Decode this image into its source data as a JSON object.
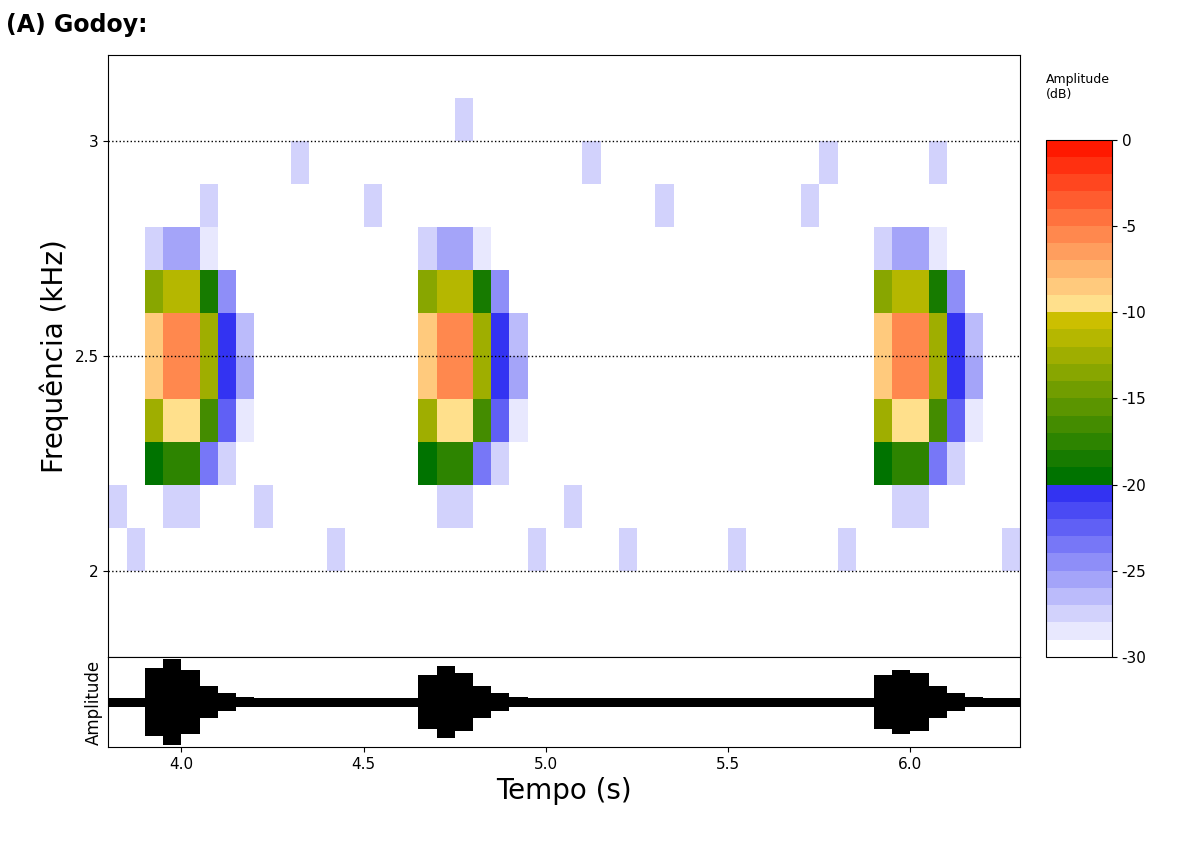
{
  "chart_data": [
    {
      "type": "heatmap",
      "title": "(A) Godoy:",
      "ylabel": "Frequência (kHz)",
      "xlim": [
        3.8,
        6.3
      ],
      "ylim": [
        1.8,
        3.2
      ],
      "yticks": [
        2,
        2.5,
        3
      ],
      "grid": true,
      "tick_labels": "y",
      "time_edges": [
        3.8,
        3.85,
        3.9,
        3.95,
        4.0,
        4.05,
        4.1,
        4.15,
        4.2,
        4.25,
        4.3,
        4.35,
        4.4,
        4.45,
        4.5,
        4.55,
        4.6,
        4.65,
        4.7,
        4.75,
        4.8,
        4.85,
        4.9,
        4.95,
        5.0,
        5.05,
        5.1,
        5.15,
        5.2,
        5.25,
        5.3,
        5.35,
        5.4,
        5.45,
        5.5,
        5.55,
        5.6,
        5.65,
        5.7,
        5.75,
        5.8,
        5.85,
        5.9,
        5.95,
        6.0,
        6.05,
        6.1,
        6.15,
        6.2,
        6.25,
        6.3
      ],
      "freq_edges": [
        1.8,
        1.9,
        2.0,
        2.1,
        2.2,
        2.3,
        2.4,
        2.5,
        2.6,
        2.7,
        2.8,
        2.9,
        3.0,
        3.1,
        3.2
      ],
      "cells": [
        [
          -30,
          -30,
          -30,
          -30,
          -30,
          -30,
          -30,
          -30,
          -30,
          -30,
          -30,
          -30,
          -30,
          -30,
          -30,
          -30,
          -30,
          -30,
          -30,
          -30,
          -30,
          -30,
          -30,
          -30,
          -30,
          -30,
          -30,
          -30,
          -30,
          -30,
          -30,
          -30,
          -30,
          -30,
          -30,
          -30,
          -30,
          -30,
          -30,
          -30,
          -30,
          -30,
          -30,
          -30,
          -30,
          -30,
          -30,
          -30,
          -30,
          -30
        ],
        [
          -30,
          -30,
          -30,
          -30,
          -30,
          -30,
          -30,
          -30,
          -30,
          -30,
          -30,
          -30,
          -30,
          -30,
          -30,
          -30,
          -30,
          -30,
          -30,
          -30,
          -30,
          -30,
          -30,
          -30,
          -30,
          -30,
          -30,
          -30,
          -30,
          -30,
          -30,
          -30,
          -30,
          -30,
          -30,
          -30,
          -30,
          -30,
          -30,
          -30,
          -30,
          -30,
          -30,
          -30,
          -30,
          -30,
          -30,
          -30,
          -30,
          -30
        ],
        [
          -30,
          -28,
          -30,
          -30,
          -30,
          -30,
          -30,
          -30,
          -30,
          -30,
          -30,
          -30,
          -28,
          -30,
          -30,
          -30,
          -30,
          -30,
          -30,
          -30,
          -30,
          -30,
          -30,
          -28,
          -30,
          -30,
          -30,
          -30,
          -28,
          -30,
          -30,
          -30,
          -30,
          -30,
          -28,
          -30,
          -30,
          -30,
          -30,
          -30,
          -28,
          -30,
          -30,
          -30,
          -30,
          -30,
          -30,
          -30,
          -30,
          -28
        ],
        [
          -28,
          -30,
          -30,
          -28,
          -28,
          -30,
          -30,
          -30,
          -28,
          -30,
          -30,
          -30,
          -30,
          -30,
          -30,
          -30,
          -30,
          -30,
          -28,
          -28,
          -30,
          -30,
          -30,
          -30,
          -30,
          -28,
          -30,
          -30,
          -30,
          -30,
          -30,
          -30,
          -30,
          -30,
          -30,
          -30,
          -30,
          -30,
          -30,
          -30,
          -30,
          -30,
          -30,
          -28,
          -28,
          -30,
          -30,
          -30,
          -30,
          -30
        ],
        [
          -30,
          -30,
          -20,
          -18,
          -18,
          -24,
          -28,
          -30,
          -30,
          -30,
          -30,
          -30,
          -30,
          -30,
          -30,
          -30,
          -30,
          -20,
          -18,
          -18,
          -24,
          -28,
          -30,
          -30,
          -30,
          -30,
          -30,
          -30,
          -30,
          -30,
          -30,
          -30,
          -30,
          -30,
          -30,
          -30,
          -30,
          -30,
          -30,
          -30,
          -30,
          -30,
          -20,
          -18,
          -18,
          -24,
          -28,
          -30,
          -30,
          -30
        ],
        [
          -30,
          -30,
          -13,
          -10,
          -10,
          -17,
          -23,
          -29,
          -30,
          -30,
          -30,
          -30,
          -30,
          -30,
          -30,
          -30,
          -30,
          -13,
          -10,
          -10,
          -17,
          -23,
          -29,
          -30,
          -30,
          -30,
          -30,
          -30,
          -30,
          -30,
          -30,
          -30,
          -30,
          -30,
          -30,
          -30,
          -30,
          -30,
          -30,
          -30,
          -30,
          -30,
          -13,
          -10,
          -10,
          -17,
          -23,
          -29,
          -30,
          -30
        ],
        [
          -30,
          -30,
          -9,
          -6,
          -6,
          -13,
          -21,
          -26,
          -30,
          -30,
          -30,
          -30,
          -30,
          -30,
          -30,
          -30,
          -30,
          -9,
          -6,
          -6,
          -13,
          -21,
          -26,
          -30,
          -30,
          -30,
          -30,
          -30,
          -30,
          -30,
          -30,
          -30,
          -30,
          -30,
          -30,
          -30,
          -30,
          -30,
          -30,
          -30,
          -30,
          -30,
          -9,
          -6,
          -6,
          -13,
          -21,
          -26,
          -30,
          -30
        ],
        [
          -30,
          -30,
          -9,
          -6,
          -6,
          -13,
          -21,
          -27,
          -30,
          -30,
          -30,
          -30,
          -30,
          -30,
          -30,
          -30,
          -30,
          -9,
          -6,
          -6,
          -13,
          -21,
          -27,
          -30,
          -30,
          -30,
          -30,
          -30,
          -30,
          -30,
          -30,
          -30,
          -30,
          -30,
          -30,
          -30,
          -30,
          -30,
          -30,
          -30,
          -30,
          -30,
          -9,
          -6,
          -6,
          -13,
          -21,
          -27,
          -30,
          -30
        ],
        [
          -30,
          -30,
          -14,
          -12,
          -12,
          -19,
          -25,
          -30,
          -30,
          -30,
          -30,
          -30,
          -30,
          -30,
          -30,
          -30,
          -30,
          -14,
          -12,
          -12,
          -19,
          -25,
          -30,
          -30,
          -30,
          -30,
          -30,
          -30,
          -30,
          -30,
          -30,
          -30,
          -30,
          -30,
          -30,
          -30,
          -30,
          -30,
          -30,
          -30,
          -30,
          -30,
          -14,
          -12,
          -12,
          -19,
          -25,
          -30,
          -30,
          -30
        ],
        [
          -30,
          -30,
          -28,
          -26,
          -26,
          -29,
          -30,
          -30,
          -30,
          -30,
          -30,
          -30,
          -30,
          -30,
          -30,
          -30,
          -30,
          -28,
          -26,
          -26,
          -29,
          -30,
          -30,
          -30,
          -30,
          -30,
          -30,
          -30,
          -30,
          -30,
          -30,
          -30,
          -30,
          -30,
          -30,
          -30,
          -30,
          -30,
          -30,
          -30,
          -30,
          -30,
          -28,
          -26,
          -26,
          -29,
          -30,
          -30,
          -30,
          -30
        ],
        [
          -30,
          -30,
          -30,
          -30,
          -30,
          -28,
          -30,
          -30,
          -30,
          -30,
          -30,
          -30,
          -30,
          -30,
          -28,
          -30,
          -30,
          -30,
          -30,
          -30,
          -30,
          -30,
          -30,
          -30,
          -30,
          -30,
          -30,
          -30,
          -30,
          -30,
          -28,
          -30,
          -30,
          -30,
          -30,
          -30,
          -30,
          -30,
          -28,
          -30,
          -30,
          -30,
          -30,
          -30,
          -30,
          -30,
          -30,
          -30,
          -30,
          -30
        ],
        [
          -30,
          -30,
          -30,
          -30,
          -30,
          -30,
          -30,
          -30,
          -30,
          -30,
          -28,
          -30,
          -30,
          -30,
          -30,
          -30,
          -30,
          -30,
          -30,
          -30,
          -30,
          -30,
          -30,
          -30,
          -30,
          -30,
          -28,
          -30,
          -30,
          -30,
          -30,
          -30,
          -30,
          -30,
          -30,
          -30,
          -30,
          -30,
          -30,
          -28,
          -30,
          -30,
          -30,
          -30,
          -30,
          -28,
          -30,
          -30,
          -30,
          -30
        ],
        [
          -30,
          -30,
          -30,
          -30,
          -30,
          -30,
          -30,
          -30,
          -30,
          -30,
          -30,
          -30,
          -30,
          -30,
          -30,
          -30,
          -30,
          -30,
          -30,
          -28,
          -30,
          -30,
          -30,
          -30,
          -30,
          -30,
          -30,
          -30,
          -30,
          -30,
          -30,
          -30,
          -30,
          -30,
          -30,
          -30,
          -30,
          -30,
          -30,
          -30,
          -30,
          -30,
          -30,
          -30,
          -30,
          -30,
          -30,
          -30,
          -30,
          -30
        ],
        [
          -30,
          -30,
          -30,
          -30,
          -30,
          -30,
          -30,
          -30,
          -30,
          -30,
          -30,
          -30,
          -30,
          -30,
          -30,
          -30,
          -30,
          -30,
          -30,
          -30,
          -30,
          -30,
          -30,
          -30,
          -30,
          -30,
          -30,
          -30,
          -30,
          -30,
          -30,
          -30,
          -30,
          -30,
          -30,
          -30,
          -30,
          -30,
          -30,
          -30,
          -30,
          -30,
          -30,
          -30,
          -30,
          -30,
          -30,
          -30,
          -30,
          -30
        ]
      ],
      "colorbar": {
        "title": "Amplitude\n(dB)",
        "range": [
          -30,
          0
        ],
        "ticks": [
          0,
          -5,
          -10,
          -15,
          -20,
          -25,
          -30
        ]
      }
    },
    {
      "type": "area",
      "xlabel": "Tempo (s)",
      "ylabel": "Amplitude",
      "xlim": [
        3.8,
        6.3
      ],
      "ylim": [
        -1,
        1
      ],
      "xticks": [
        {
          "value": 4,
          "label": "4.0"
        },
        4.5,
        {
          "value": 5,
          "label": "5.0"
        },
        5.5,
        {
          "value": 6,
          "label": "6.0"
        }
      ],
      "tick_labels": "x",
      "color": "#000000",
      "bins": [
        3.8,
        3.85,
        3.9,
        3.95,
        4.0,
        4.05,
        4.1,
        4.15,
        4.2,
        4.25,
        4.3,
        4.35,
        4.4,
        4.45,
        4.5,
        4.55,
        4.6,
        4.65,
        4.7,
        4.75,
        4.8,
        4.85,
        4.9,
        4.95,
        5.0,
        5.05,
        5.1,
        5.15,
        5.2,
        5.25,
        5.3,
        5.35,
        5.4,
        5.45,
        5.5,
        5.55,
        5.6,
        5.65,
        5.7,
        5.75,
        5.8,
        5.85,
        5.9,
        5.95,
        6.0,
        6.05,
        6.1,
        6.15,
        6.2,
        6.25,
        6.3
      ],
      "values": [
        0.1,
        0.1,
        0.75,
        0.95,
        0.7,
        0.35,
        0.2,
        0.12,
        0.1,
        0.1,
        0.1,
        0.1,
        0.1,
        0.1,
        0.1,
        0.1,
        0.1,
        0.6,
        0.8,
        0.65,
        0.35,
        0.2,
        0.12,
        0.1,
        0.1,
        0.1,
        0.1,
        0.1,
        0.1,
        0.1,
        0.1,
        0.1,
        0.1,
        0.1,
        0.1,
        0.1,
        0.1,
        0.1,
        0.1,
        0.1,
        0.1,
        0.1,
        0.6,
        0.7,
        0.65,
        0.35,
        0.2,
        0.12,
        0.1,
        0.1
      ]
    }
  ]
}
